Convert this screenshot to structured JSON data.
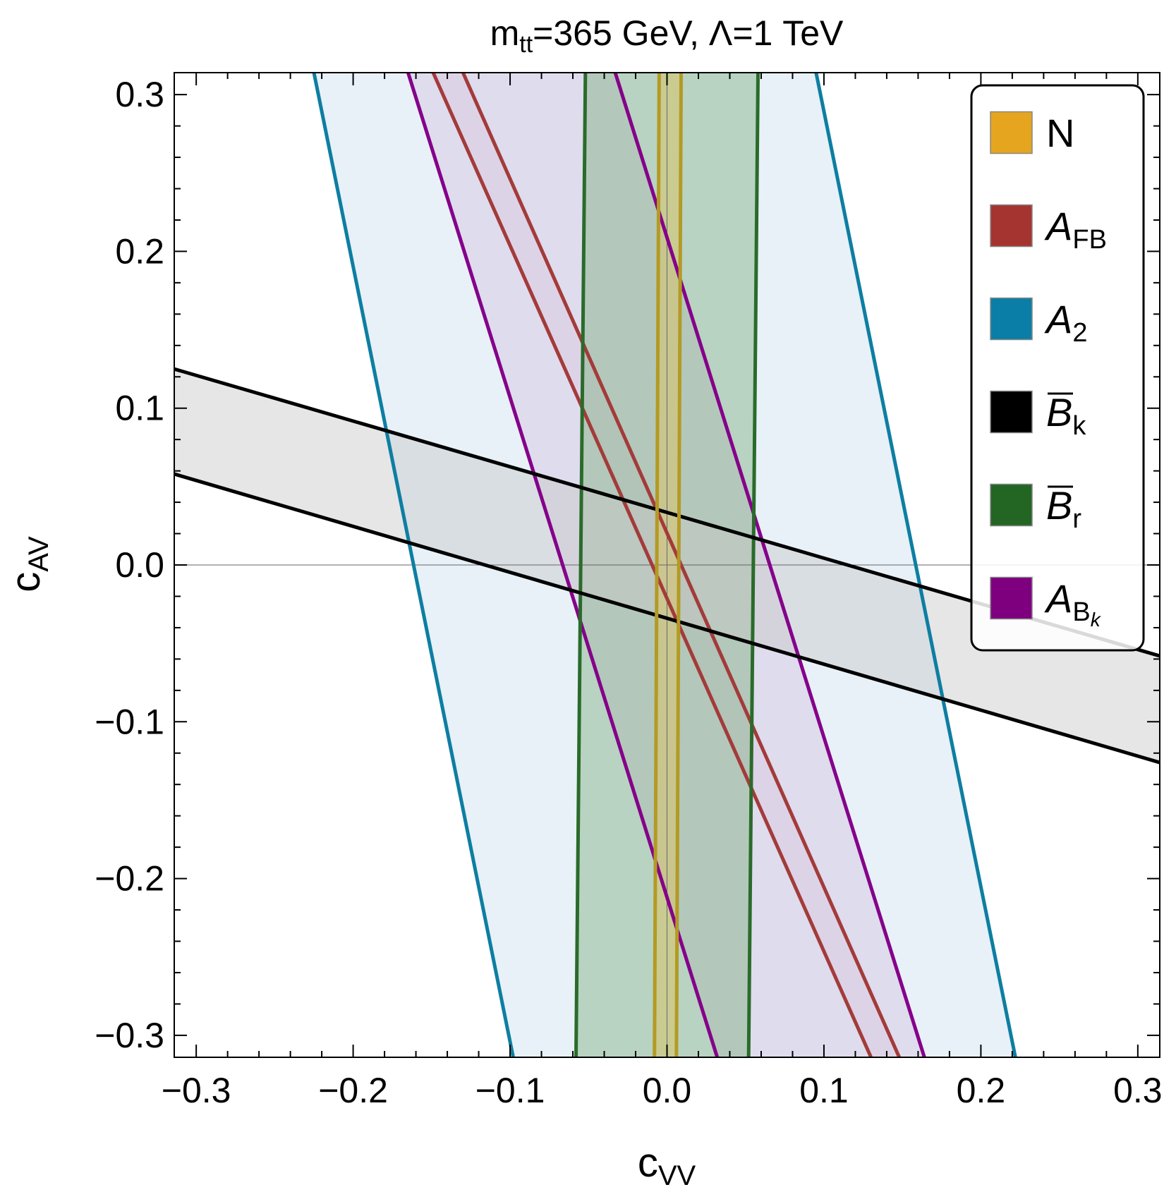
{
  "chart_data": {
    "type": "region",
    "title": {
      "main": "m",
      "sub": "tt",
      "rest": "=365 GeV, Λ=1 TeV"
    },
    "xlabel": {
      "main": "c",
      "sub": "VV"
    },
    "ylabel": {
      "main": "c",
      "sub": "AV"
    },
    "xlim": [
      -0.314,
      0.314
    ],
    "ylim": [
      -0.314,
      0.314
    ],
    "xticks": [
      -0.3,
      -0.2,
      -0.1,
      0.0,
      0.1,
      0.2,
      0.3
    ],
    "yticks": [
      -0.3,
      -0.2,
      -0.1,
      0.0,
      0.1,
      0.2,
      0.3
    ],
    "xtick_labels": [
      "−0.3",
      "−0.2",
      "−0.1",
      "0.0",
      "0.1",
      "0.2",
      "0.3"
    ],
    "ytick_labels": [
      "−0.3",
      "−0.2",
      "−0.1",
      "0.0",
      "0.1",
      "0.2",
      "0.3"
    ],
    "legend_position": "top-right",
    "series": [
      {
        "name": "A2",
        "label": {
          "main": "A",
          "sub": "2",
          "bar": false,
          "italic": true
        },
        "color": "#0e7ea2",
        "fill": "#e4f0f6",
        "fill_opacity": 0.9,
        "boundaries": [
          [
            [
              -0.225,
              0.314
            ],
            [
              -0.098,
              -0.314
            ]
          ],
          [
            [
              0.095,
              0.314
            ],
            [
              0.222,
              -0.314
            ]
          ]
        ]
      },
      {
        "name": "AFB",
        "label": {
          "main": "A",
          "sub": "FB",
          "bar": false,
          "italic": true
        },
        "color": "#a33b3a",
        "fill": "#e0bfd0",
        "fill_opacity": 0.45,
        "boundaries": [
          [
            [
              -0.149,
              0.314
            ],
            [
              0.13,
              -0.314
            ]
          ],
          [
            [
              -0.13,
              0.314
            ],
            [
              0.148,
              -0.314
            ]
          ]
        ]
      },
      {
        "name": "ABk",
        "label": {
          "main": "A",
          "sub": "B",
          "subsub": "k",
          "bar": false,
          "italic": true
        },
        "color": "#85008a",
        "fill": "#d8cfe6",
        "fill_opacity": 0.6,
        "boundaries": [
          [
            [
              -0.165,
              0.314
            ],
            [
              0.032,
              -0.314
            ]
          ],
          [
            [
              -0.033,
              0.314
            ],
            [
              0.164,
              -0.314
            ]
          ]
        ]
      },
      {
        "name": "Br",
        "label": {
          "main": "B",
          "sub": "r",
          "bar": true,
          "italic": true
        },
        "color": "#2a6b2a",
        "fill": "#7faf7f",
        "fill_opacity": 0.45,
        "boundaries": [
          [
            [
              -0.052,
              0.314
            ],
            [
              -0.058,
              -0.314
            ]
          ],
          [
            [
              0.058,
              0.314
            ],
            [
              0.052,
              -0.314
            ]
          ]
        ]
      },
      {
        "name": "Bk",
        "label": {
          "main": "B",
          "sub": "k",
          "bar": true,
          "italic": true
        },
        "color": "#000000",
        "fill": "#c8c8c8",
        "fill_opacity": 0.45,
        "boundaries": [
          [
            [
              -0.314,
              0.125
            ],
            [
              0.314,
              -0.058
            ]
          ],
          [
            [
              -0.314,
              0.058
            ],
            [
              0.314,
              -0.126
            ]
          ]
        ]
      },
      {
        "name": "N",
        "label": {
          "main": "N",
          "sub": "",
          "bar": false,
          "italic": false
        },
        "color": "#b39a24",
        "fill": "#d9c46a",
        "fill_opacity": 0.55,
        "boundaries": [
          [
            [
              -0.005,
              0.314
            ],
            [
              -0.008,
              -0.314
            ]
          ],
          [
            [
              0.009,
              0.314
            ],
            [
              0.006,
              -0.314
            ]
          ]
        ]
      }
    ],
    "legend_order": [
      "N",
      "AFB",
      "A2",
      "Bk",
      "Br",
      "ABk"
    ],
    "legend_swatches": {
      "N": "#e5a51e",
      "AFB": "#a53431",
      "A2": "#0a7ea6",
      "Bk": "#000000",
      "Br": "#236523",
      "ABk": "#7f007f"
    }
  }
}
